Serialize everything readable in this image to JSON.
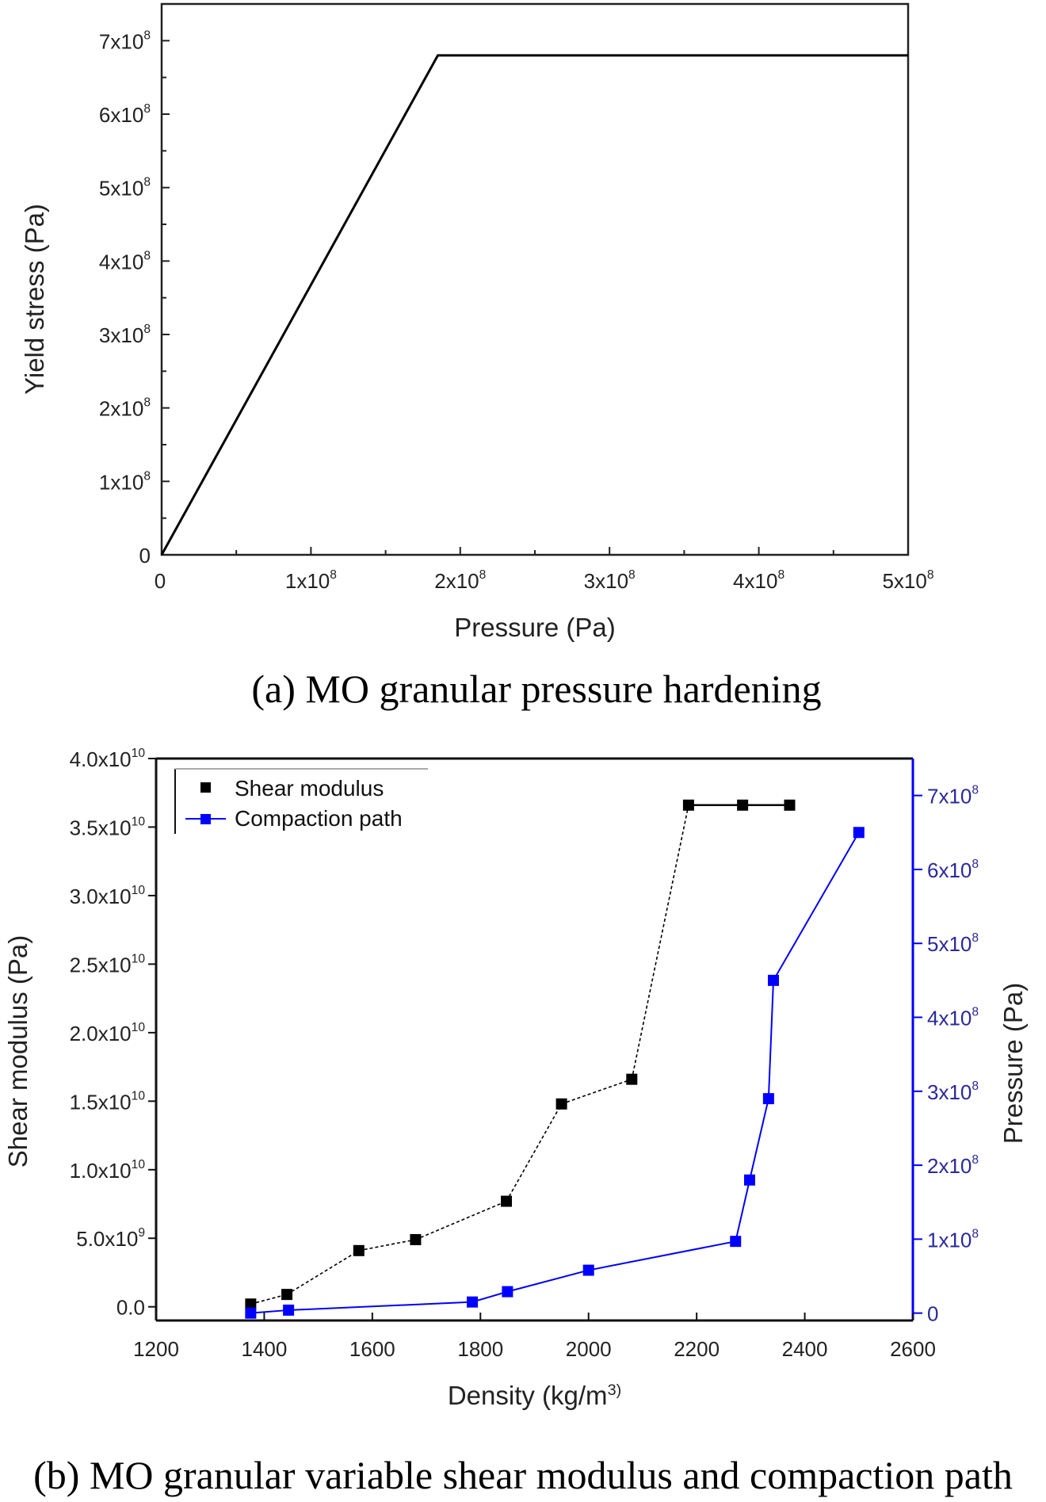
{
  "chart_data": [
    {
      "type": "line",
      "caption": "(a) MO granular pressure hardening",
      "xlabel": "Pressure (Pa)",
      "ylabel": "Yield stress (Pa)",
      "xlim": [
        0,
        500000000
      ],
      "ylim": [
        0,
        750000000
      ],
      "x_ticks": [
        0,
        100000000,
        200000000,
        300000000,
        400000000,
        500000000
      ],
      "x_tick_labels": [
        "0",
        "1x10^8",
        "2x10^8",
        "3x10^8",
        "4x10^8",
        "5x10^8"
      ],
      "y_ticks": [
        0,
        100000000,
        200000000,
        300000000,
        400000000,
        500000000,
        600000000,
        700000000
      ],
      "y_tick_labels": [
        "0",
        "1x10^8",
        "2x10^8",
        "3x10^8",
        "4x10^8",
        "5x10^8",
        "6x10^8",
        "7x10^8"
      ],
      "grid": false,
      "series": [
        {
          "x": [
            0,
            185000000,
            500000000
          ],
          "y": [
            0,
            680000000,
            680000000
          ],
          "color": "#000000"
        }
      ]
    },
    {
      "type": "line",
      "caption": "(b) MO granular variable shear modulus and compaction path",
      "xlabel": "Density (kg/m^3)",
      "ylabel": "Shear modulus (Pa)",
      "ylabel_right": "Pressure (Pa)",
      "xlim": [
        1200,
        2600
      ],
      "ylim": [
        -1000000000,
        40000000000
      ],
      "ylim_right": [
        -10000000,
        750000000
      ],
      "x_ticks": [
        1200,
        1400,
        1600,
        1800,
        2000,
        2200,
        2400,
        2600
      ],
      "x_tick_labels": [
        "1200",
        "1400",
        "1600",
        "1800",
        "2000",
        "2200",
        "2400",
        "2600"
      ],
      "y_ticks": [
        0,
        5000000000,
        10000000000,
        15000000000,
        20000000000,
        25000000000,
        30000000000,
        35000000000,
        40000000000
      ],
      "y_tick_labels": [
        "0.0",
        "5.0x10^9",
        "1.0x10^10",
        "1.5x10^10",
        "2.0x10^10",
        "2.5x10^10",
        "3.0x10^10",
        "3.5x10^10",
        "4.0x10^10"
      ],
      "y_ticks_right": [
        0,
        100000000,
        200000000,
        300000000,
        400000000,
        500000000,
        600000000,
        700000000
      ],
      "y_tick_labels_right": [
        "0",
        "1x10^8",
        "2x10^8",
        "3x10^8",
        "4x10^8",
        "5x10^8",
        "6x10^8",
        "7x10^8"
      ],
      "grid": false,
      "legend_position": "top-left",
      "series": [
        {
          "name": "Shear modulus",
          "axis": "left",
          "color": "#000000",
          "x": [
            1375,
            1442,
            1575,
            1680,
            1848,
            1950,
            2080,
            2185,
            2285,
            2372
          ],
          "y": [
            200000000,
            900000000,
            4100000000,
            4900000000,
            7700000000,
            14800000000,
            16600000000,
            36600000000,
            36600000000,
            36600000000
          ]
        },
        {
          "name": "Compaction path",
          "axis": "right",
          "color": "#0000ff",
          "x": [
            1375,
            1445,
            1785,
            1850,
            2000,
            2272,
            2298,
            2333,
            2342,
            2500
          ],
          "y": [
            0,
            4000000,
            15000000,
            29000000,
            58000000,
            97000000,
            180000000,
            290000000,
            450000000,
            650000000
          ]
        }
      ]
    }
  ]
}
